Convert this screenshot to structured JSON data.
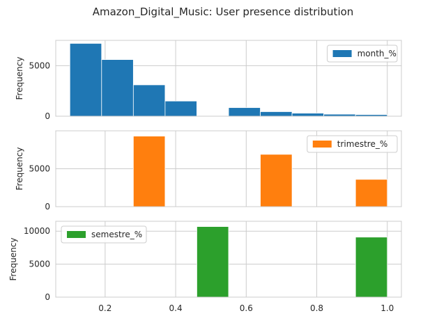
{
  "chart_data": {
    "type": "bar",
    "title": "Amazon_Digital_Music: User presence distribution",
    "xlim": [
      0.06,
      1.04
    ],
    "xticks": [
      "0.2",
      "0.4",
      "0.6",
      "0.8",
      "1.0"
    ],
    "grid": true,
    "subplots": [
      {
        "ylabel": "Frequency",
        "ylim": [
          0,
          7500
        ],
        "yticks": [
          "0",
          "5000"
        ],
        "legend_position": "upper-right",
        "series": [
          {
            "name": "month_%",
            "color": "#1f77b4",
            "bins": [
              {
                "x0": 0.1,
                "x1": 0.19,
                "value": 7200
              },
              {
                "x0": 0.19,
                "x1": 0.28,
                "value": 5600
              },
              {
                "x0": 0.28,
                "x1": 0.37,
                "value": 3100
              },
              {
                "x0": 0.37,
                "x1": 0.46,
                "value": 1500
              },
              {
                "x0": 0.46,
                "x1": 0.55,
                "value": 0
              },
              {
                "x0": 0.55,
                "x1": 0.64,
                "value": 850
              },
              {
                "x0": 0.64,
                "x1": 0.73,
                "value": 450
              },
              {
                "x0": 0.73,
                "x1": 0.82,
                "value": 300
              },
              {
                "x0": 0.82,
                "x1": 0.91,
                "value": 200
              },
              {
                "x0": 0.91,
                "x1": 1.0,
                "value": 160
              }
            ]
          }
        ]
      },
      {
        "ylabel": "Frequency",
        "ylim": [
          0,
          10000
        ],
        "yticks": [
          "0",
          "5000"
        ],
        "legend_position": "upper-right",
        "series": [
          {
            "name": "trimestre_%",
            "color": "#ff7f0e",
            "bins": [
              {
                "x0": 0.1,
                "x1": 0.19,
                "value": 0
              },
              {
                "x0": 0.19,
                "x1": 0.28,
                "value": 0
              },
              {
                "x0": 0.28,
                "x1": 0.37,
                "value": 9300
              },
              {
                "x0": 0.37,
                "x1": 0.46,
                "value": 0
              },
              {
                "x0": 0.46,
                "x1": 0.55,
                "value": 0
              },
              {
                "x0": 0.55,
                "x1": 0.64,
                "value": 0
              },
              {
                "x0": 0.64,
                "x1": 0.73,
                "value": 6900
              },
              {
                "x0": 0.73,
                "x1": 0.82,
                "value": 0
              },
              {
                "x0": 0.82,
                "x1": 0.91,
                "value": 0
              },
              {
                "x0": 0.91,
                "x1": 1.0,
                "value": 3600
              }
            ]
          }
        ]
      },
      {
        "ylabel": "Frequency",
        "ylim": [
          0,
          11500
        ],
        "yticks": [
          "0",
          "5000",
          "10000"
        ],
        "legend_position": "upper-left",
        "series": [
          {
            "name": "semestre_%",
            "color": "#2ca02c",
            "bins": [
              {
                "x0": 0.1,
                "x1": 0.19,
                "value": 0
              },
              {
                "x0": 0.19,
                "x1": 0.28,
                "value": 0
              },
              {
                "x0": 0.28,
                "x1": 0.37,
                "value": 0
              },
              {
                "x0": 0.37,
                "x1": 0.46,
                "value": 0
              },
              {
                "x0": 0.46,
                "x1": 0.55,
                "value": 10700
              },
              {
                "x0": 0.55,
                "x1": 0.64,
                "value": 0
              },
              {
                "x0": 0.64,
                "x1": 0.73,
                "value": 0
              },
              {
                "x0": 0.73,
                "x1": 0.82,
                "value": 0
              },
              {
                "x0": 0.82,
                "x1": 0.91,
                "value": 0
              },
              {
                "x0": 0.91,
                "x1": 1.0,
                "value": 9100
              }
            ]
          }
        ]
      }
    ]
  }
}
